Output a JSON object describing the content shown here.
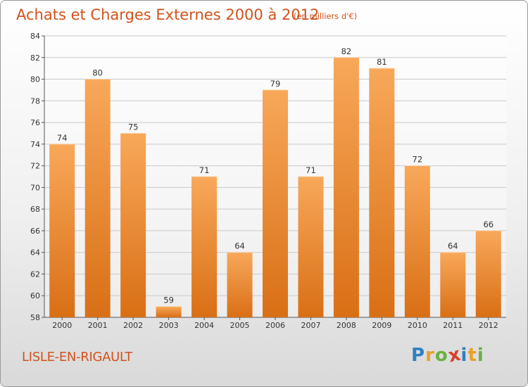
{
  "title": "Achats et Charges Externes 2000 à 2012",
  "subtitle": "(en milliers d'€)",
  "commune": "LISLE-EN-RIGAULT",
  "logo": {
    "letters": [
      "P",
      "r",
      "o",
      "x",
      "i",
      "t",
      "i"
    ],
    "colors": [
      "#2f7fc1",
      "#e9a02a",
      "#6ab042",
      "#d6402b",
      "#2f7fc1",
      "#e9a02a",
      "#6ab042"
    ]
  },
  "colors": {
    "bar_top": "#f8a85a",
    "bar_bottom": "#d96f15",
    "text": "#d2531c",
    "grid": "#c8c8c8"
  },
  "chart_data": {
    "type": "bar",
    "categories": [
      "2000",
      "2001",
      "2002",
      "2003",
      "2004",
      "2005",
      "2006",
      "2007",
      "2008",
      "2009",
      "2010",
      "2011",
      "2012"
    ],
    "values": [
      74,
      80,
      75,
      59,
      71,
      64,
      79,
      71,
      82,
      81,
      72,
      64,
      66
    ],
    "ylim": [
      58,
      84
    ],
    "yticks": [
      58,
      60,
      62,
      64,
      66,
      68,
      70,
      72,
      74,
      76,
      78,
      80,
      82,
      84
    ],
    "data_labels": true,
    "grid": "horizontal"
  }
}
